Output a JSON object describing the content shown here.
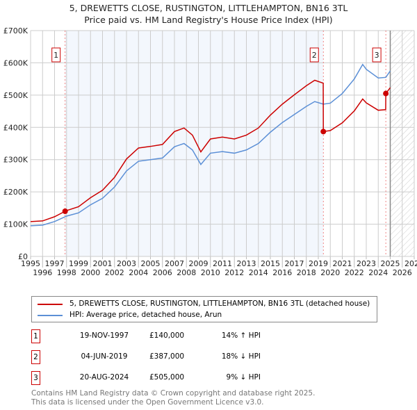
{
  "chart_data": {
    "type": "line",
    "title": "5, DREWETTS CLOSE, RUSTINGTON, LITTLEHAMPTON, BN16 3TL",
    "subtitle": "Price paid vs. HM Land Registry's House Price Index (HPI)",
    "xlim": [
      1995,
      2027
    ],
    "ylim": [
      0,
      700000
    ],
    "x_ticks": [
      "1995",
      "1996",
      "1997",
      "1998",
      "1999",
      "2000",
      "2001",
      "2002",
      "2003",
      "2004",
      "2005",
      "2006",
      "2007",
      "2008",
      "2009",
      "2010",
      "2011",
      "2012",
      "2013",
      "2014",
      "2015",
      "2016",
      "2017",
      "2018",
      "2019",
      "2020",
      "2021",
      "2022",
      "2023",
      "2024",
      "2025",
      "2026",
      "2027"
    ],
    "y_ticks": [
      {
        "v": 0,
        "label": "£0"
      },
      {
        "v": 100000,
        "label": "£100K"
      },
      {
        "v": 200000,
        "label": "£200K"
      },
      {
        "v": 300000,
        "label": "£300K"
      },
      {
        "v": 400000,
        "label": "£400K"
      },
      {
        "v": 500000,
        "label": "£500K"
      },
      {
        "v": 600000,
        "label": "£600K"
      },
      {
        "v": 700000,
        "label": "£700K"
      }
    ],
    "forecast_start": 2025.0,
    "series": [
      {
        "name": "5, DREWETTS CLOSE, RUSTINGTON, LITTLEHAMPTON, BN16 3TL (detached house)",
        "color": "#cc0000",
        "x": [
          1995,
          1996,
          1997,
          1997.88,
          1998,
          1999,
          2000,
          2001,
          2002,
          2003,
          2004,
          2005,
          2006,
          2007,
          2007.8,
          2008.5,
          2009.2,
          2010,
          2011,
          2012,
          2013,
          2014,
          2015,
          2016,
          2017,
          2018,
          2018.7,
          2019.41,
          2019.42,
          2020,
          2021,
          2022,
          2022.7,
          2023,
          2024,
          2024.62,
          2024.63,
          2025
        ],
        "y": [
          108,
          110,
          123,
          140,
          142,
          154,
          182,
          205,
          245,
          302,
          336,
          341,
          347,
          387,
          398,
          376,
          324,
          364,
          370,
          364,
          376,
          398,
          438,
          472,
          501,
          529,
          546,
          537,
          387,
          390,
          414,
          451,
          488,
          476,
          453,
          455,
          505,
          523
        ]
      },
      {
        "name": "HPI: Average price, detached house, Arun",
        "color": "#5b8fd6",
        "x": [
          1995,
          1996,
          1997,
          1997.88,
          1998,
          1999,
          2000,
          2001,
          2002,
          2003,
          2004,
          2005,
          2006,
          2007,
          2007.8,
          2008.5,
          2009.2,
          2010,
          2011,
          2012,
          2013,
          2014,
          2015,
          2016,
          2017,
          2018,
          2018.7,
          2019.42,
          2020,
          2021,
          2022,
          2022.7,
          2023,
          2024,
          2024.63,
          2025
        ],
        "y": [
          95,
          97,
          108,
          123,
          125,
          135,
          160,
          180,
          215,
          265,
          295,
          300,
          305,
          340,
          350,
          330,
          285,
          320,
          325,
          320,
          330,
          350,
          385,
          415,
          440,
          465,
          480,
          472,
          475,
          505,
          550,
          595,
          580,
          553,
          555,
          575
        ]
      }
    ],
    "y_unit_multiplier": 1000,
    "sales": [
      {
        "n": "1",
        "x": 1997.88,
        "y": 140,
        "date": "19-NOV-1997",
        "price": "£140,000",
        "hpi": "14% ↑ HPI"
      },
      {
        "n": "2",
        "x": 2019.42,
        "y": 387,
        "date": "04-JUN-2019",
        "price": "£387,000",
        "hpi": "18% ↓ HPI"
      },
      {
        "n": "3",
        "x": 2024.63,
        "y": 505,
        "date": "20-AUG-2024",
        "price": "£505,000",
        "hpi": "9% ↓ HPI"
      }
    ]
  },
  "footer": {
    "line1": "Contains HM Land Registry data © Crown copyright and database right 2025.",
    "line2": "This data is licensed under the Open Government Licence v3.0."
  }
}
